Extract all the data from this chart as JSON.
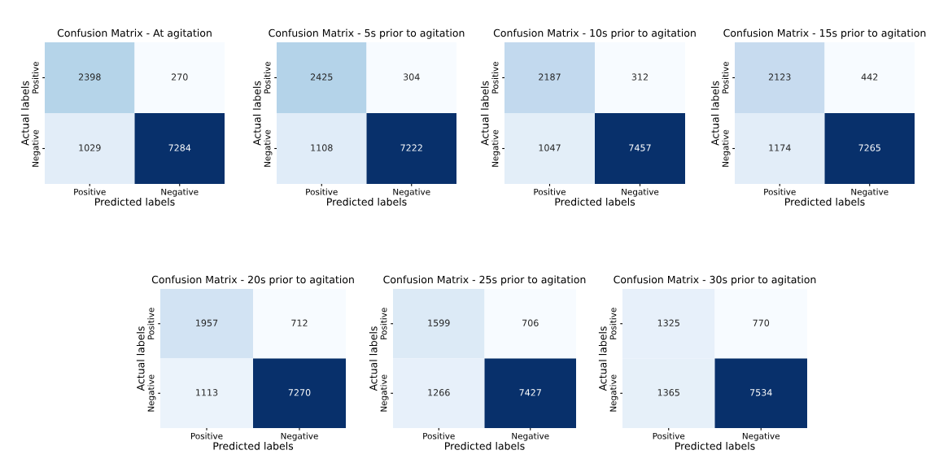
{
  "chart_data": [
    {
      "type": "heatmap",
      "title": "Confusion Matrix - At agitation",
      "xlabel": "Predicted labels",
      "ylabel": "Actual labels",
      "categories": [
        "Positive",
        "Negative"
      ],
      "y_categories": [
        "Positive",
        "Negative"
      ],
      "cells": [
        [
          2398,
          270
        ],
        [
          1029,
          7284
        ]
      ],
      "data_labels": true
    },
    {
      "type": "heatmap",
      "title": "Confusion Matrix - 5s prior to agitation",
      "xlabel": "Predicted labels",
      "ylabel": "Actual labels",
      "categories": [
        "Positive",
        "Negative"
      ],
      "y_categories": [
        "Positive",
        "Negative"
      ],
      "cells": [
        [
          2425,
          304
        ],
        [
          1108,
          7222
        ]
      ],
      "data_labels": true
    },
    {
      "type": "heatmap",
      "title": "Confusion Matrix - 10s prior to agitation",
      "xlabel": "Predicted labels",
      "ylabel": "Actual labels",
      "categories": [
        "Positive",
        "Negative"
      ],
      "y_categories": [
        "Positive",
        "Negative"
      ],
      "cells": [
        [
          2187,
          312
        ],
        [
          1047,
          7457
        ]
      ],
      "data_labels": true
    },
    {
      "type": "heatmap",
      "title": "Confusion Matrix - 15s prior to agitation",
      "xlabel": "Predicted labels",
      "ylabel": "Actual labels",
      "categories": [
        "Positive",
        "Negative"
      ],
      "y_categories": [
        "Positive",
        "Negative"
      ],
      "cells": [
        [
          2123,
          442
        ],
        [
          1174,
          7265
        ]
      ],
      "data_labels": true
    },
    {
      "type": "heatmap",
      "title": "Confusion Matrix - 20s prior to agitation",
      "xlabel": "Predicted labels",
      "ylabel": "Actual labels",
      "categories": [
        "Positive",
        "Negative"
      ],
      "y_categories": [
        "Positive",
        "Negative"
      ],
      "cells": [
        [
          1957,
          712
        ],
        [
          1113,
          7270
        ]
      ],
      "data_labels": true
    },
    {
      "type": "heatmap",
      "title": "Confusion Matrix - 25s prior to agitation",
      "xlabel": "Predicted labels",
      "ylabel": "Actual labels",
      "categories": [
        "Positive",
        "Negative"
      ],
      "y_categories": [
        "Positive",
        "Negative"
      ],
      "cells": [
        [
          1599,
          706
        ],
        [
          1266,
          7427
        ]
      ],
      "data_labels": true
    },
    {
      "type": "heatmap",
      "title": "Confusion Matrix - 30s prior to agitation",
      "xlabel": "Predicted labels",
      "ylabel": "Actual labels",
      "categories": [
        "Positive",
        "Negative"
      ],
      "y_categories": [
        "Positive",
        "Negative"
      ],
      "cells": [
        [
          1325,
          770
        ],
        [
          1365,
          7534
        ]
      ],
      "data_labels": true
    }
  ]
}
